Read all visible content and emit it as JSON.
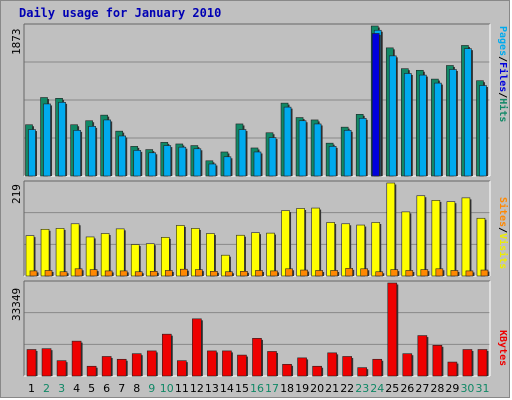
{
  "title": "Daily usage for January 2010",
  "colors": {
    "pages": "#0000dd",
    "files": "#00aaee",
    "hits": "#118866",
    "visits": "#ffff00",
    "sites": "#ff8800",
    "kbytes": "#ee0000",
    "weekend_label": "#118866"
  },
  "panels": {
    "top": {
      "ymax_label": "1873",
      "legend": [
        "Pages",
        "Files",
        "Hits"
      ]
    },
    "middle": {
      "ymax_label": "219",
      "legend": [
        "Sites",
        "Visits"
      ]
    },
    "bottom": {
      "ymax_label": "33349",
      "legend": [
        "KBytes"
      ]
    }
  },
  "chart_data": [
    {
      "type": "bar",
      "title": "Daily usage for January 2010",
      "categories": [
        "1",
        "2",
        "3",
        "4",
        "5",
        "6",
        "7",
        "8",
        "9",
        "10",
        "11",
        "12",
        "13",
        "14",
        "15",
        "16",
        "17",
        "18",
        "19",
        "20",
        "21",
        "22",
        "23",
        "24",
        "25",
        "26",
        "27",
        "28",
        "29",
        "30",
        "31"
      ],
      "weekend_days": [
        "2",
        "3",
        "9",
        "10",
        "16",
        "17",
        "23",
        "24",
        "30",
        "31"
      ],
      "ylim": [
        0,
        1873
      ],
      "series": [
        {
          "name": "Hits",
          "values": [
            640,
            980,
            970,
            640,
            690,
            760,
            560,
            370,
            330,
            420,
            400,
            380,
            190,
            300,
            650,
            350,
            540,
            910,
            730,
            700,
            410,
            610,
            770,
            1873,
            1600,
            1340,
            1320,
            1210,
            1380,
            1630,
            1190
          ]
        },
        {
          "name": "Files",
          "values": [
            580,
            900,
            920,
            570,
            620,
            700,
            500,
            320,
            290,
            380,
            360,
            340,
            150,
            240,
            580,
            300,
            480,
            860,
            690,
            650,
            370,
            570,
            720,
            1820,
            1500,
            1280,
            1260,
            1160,
            1330,
            1590,
            1130
          ]
        },
        {
          "name": "Pages",
          "values": [
            0,
            0,
            0,
            0,
            0,
            0,
            0,
            0,
            0,
            0,
            0,
            0,
            0,
            0,
            0,
            0,
            0,
            0,
            0,
            0,
            0,
            0,
            0,
            1780,
            0,
            0,
            0,
            0,
            0,
            0,
            0
          ]
        }
      ]
    },
    {
      "type": "bar",
      "categories": [
        "1",
        "2",
        "3",
        "4",
        "5",
        "6",
        "7",
        "8",
        "9",
        "10",
        "11",
        "12",
        "13",
        "14",
        "15",
        "16",
        "17",
        "18",
        "19",
        "20",
        "21",
        "22",
        "23",
        "24",
        "25",
        "26",
        "27",
        "28",
        "29",
        "30",
        "31"
      ],
      "ylim": [
        0,
        219
      ],
      "series": [
        {
          "name": "Visits",
          "values": [
            95,
            110,
            112,
            123,
            92,
            100,
            111,
            74,
            76,
            91,
            119,
            112,
            100,
            49,
            96,
            102,
            101,
            154,
            159,
            160,
            126,
            123,
            120,
            126,
            219,
            151,
            189,
            178,
            175,
            184,
            136
          ]
        },
        {
          "name": "Sites",
          "values": [
            12,
            13,
            10,
            17,
            15,
            12,
            12,
            10,
            11,
            13,
            16,
            15,
            11,
            10,
            11,
            13,
            12,
            17,
            14,
            13,
            13,
            18,
            17,
            10,
            15,
            13,
            15,
            17,
            13,
            12,
            14
          ]
        }
      ]
    },
    {
      "type": "bar",
      "categories": [
        "1",
        "2",
        "3",
        "4",
        "5",
        "6",
        "7",
        "8",
        "9",
        "10",
        "11",
        "12",
        "13",
        "14",
        "15",
        "16",
        "17",
        "18",
        "19",
        "20",
        "21",
        "22",
        "23",
        "24",
        "25",
        "26",
        "27",
        "28",
        "29",
        "30",
        "31"
      ],
      "ylim": [
        0,
        33349
      ],
      "series": [
        {
          "name": "KBytes",
          "values": [
            9500,
            9800,
            5500,
            12500,
            3500,
            7000,
            6000,
            8000,
            9000,
            15000,
            5500,
            20500,
            9000,
            9000,
            7500,
            13500,
            8800,
            4200,
            6500,
            3500,
            8300,
            7000,
            3000,
            6000,
            33349,
            8000,
            14500,
            11000,
            5000,
            9500,
            9500
          ]
        }
      ]
    }
  ]
}
